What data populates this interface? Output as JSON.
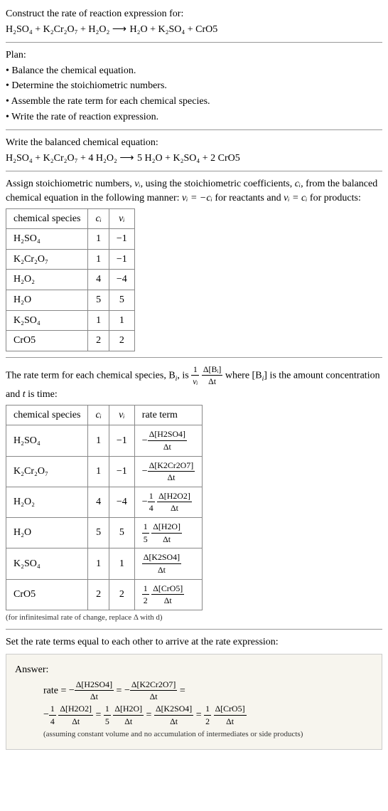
{
  "intro": {
    "line1": "Construct the rate of reaction expression for:",
    "equation_lhs": "H₂SO₄ + K₂Cr₂O₇ + H₂O₂",
    "arrow": "⟶",
    "equation_rhs": "H₂O + K₂SO₄ + CrO5"
  },
  "plan": {
    "title": "Plan:",
    "items": [
      "Balance the chemical equation.",
      "Determine the stoichiometric numbers.",
      "Assemble the rate term for each chemical species.",
      "Write the rate of reaction expression."
    ]
  },
  "balanced": {
    "title": "Write the balanced chemical equation:",
    "lhs": "H₂SO₄ + K₂Cr₂O₇ + 4 H₂O₂",
    "arrow": "⟶",
    "rhs": "5 H₂O + K₂SO₄ + 2 CrO5"
  },
  "assign": {
    "text1": "Assign stoichiometric numbers, ",
    "vi": "νᵢ",
    "text2": ", using the stoichiometric coefficients, ",
    "ci": "cᵢ",
    "text3": ", from the balanced chemical equation in the following manner: ",
    "eq_react": "νᵢ = −cᵢ",
    "text4": " for reactants and ",
    "eq_prod": "νᵢ = cᵢ",
    "text5": " for products:"
  },
  "table1": {
    "headers": [
      "chemical species",
      "cᵢ",
      "νᵢ"
    ],
    "rows": [
      [
        "H₂SO₄",
        "1",
        "−1"
      ],
      [
        "K₂Cr₂O₇",
        "1",
        "−1"
      ],
      [
        "H₂O₂",
        "4",
        "−4"
      ],
      [
        "H₂O",
        "5",
        "5"
      ],
      [
        "K₂SO₄",
        "1",
        "1"
      ],
      [
        "CrO5",
        "2",
        "2"
      ]
    ]
  },
  "rate_term_intro": {
    "text1": "The rate term for each chemical species, B",
    "sub_i": "i",
    "text2": ", is ",
    "text3": " where [B",
    "text4": "] is the amount concentration and ",
    "t": "t",
    "text5": " is time:"
  },
  "rate_frac": {
    "outer_num": "1",
    "outer_den": "νᵢ",
    "inner_num": "Δ[Bᵢ]",
    "inner_den": "Δt"
  },
  "table2": {
    "headers": [
      "chemical species",
      "cᵢ",
      "νᵢ",
      "rate term"
    ],
    "rows": [
      {
        "sp": "H₂SO₄",
        "c": "1",
        "v": "−1",
        "sign": "−",
        "coef": "",
        "num": "Δ[H2SO4]",
        "den": "Δt"
      },
      {
        "sp": "K₂Cr₂O₇",
        "c": "1",
        "v": "−1",
        "sign": "−",
        "coef": "",
        "num": "Δ[K2Cr2O7]",
        "den": "Δt"
      },
      {
        "sp": "H₂O₂",
        "c": "4",
        "v": "−4",
        "sign": "−",
        "coef": "1/4",
        "num": "Δ[H2O2]",
        "den": "Δt"
      },
      {
        "sp": "H₂O",
        "c": "5",
        "v": "5",
        "sign": "",
        "coef": "1/5",
        "num": "Δ[H2O]",
        "den": "Δt"
      },
      {
        "sp": "K₂SO₄",
        "c": "1",
        "v": "1",
        "sign": "",
        "coef": "",
        "num": "Δ[K2SO4]",
        "den": "Δt"
      },
      {
        "sp": "CrO5",
        "c": "2",
        "v": "2",
        "sign": "",
        "coef": "1/2",
        "num": "Δ[CrO5]",
        "den": "Δt"
      }
    ],
    "note": "(for infinitesimal rate of change, replace Δ with d)"
  },
  "final": {
    "title": "Set the rate terms equal to each other to arrive at the rate expression:"
  },
  "answer": {
    "label": "Answer:",
    "rate_label": "rate = ",
    "terms": [
      {
        "sign": "−",
        "coef": "",
        "num": "Δ[H2SO4]",
        "den": "Δt"
      },
      {
        "sign": "−",
        "coef": "",
        "num": "Δ[K2Cr2O7]",
        "den": "Δt"
      },
      {
        "sign": "−",
        "coef": "1/4",
        "num": "Δ[H2O2]",
        "den": "Δt"
      },
      {
        "sign": "",
        "coef": "1/5",
        "num": "Δ[H2O]",
        "den": "Δt"
      },
      {
        "sign": "",
        "coef": "",
        "num": "Δ[K2SO4]",
        "den": "Δt"
      },
      {
        "sign": "",
        "coef": "1/2",
        "num": "Δ[CrO5]",
        "den": "Δt"
      }
    ],
    "note": "(assuming constant volume and no accumulation of intermediates or side products)"
  }
}
